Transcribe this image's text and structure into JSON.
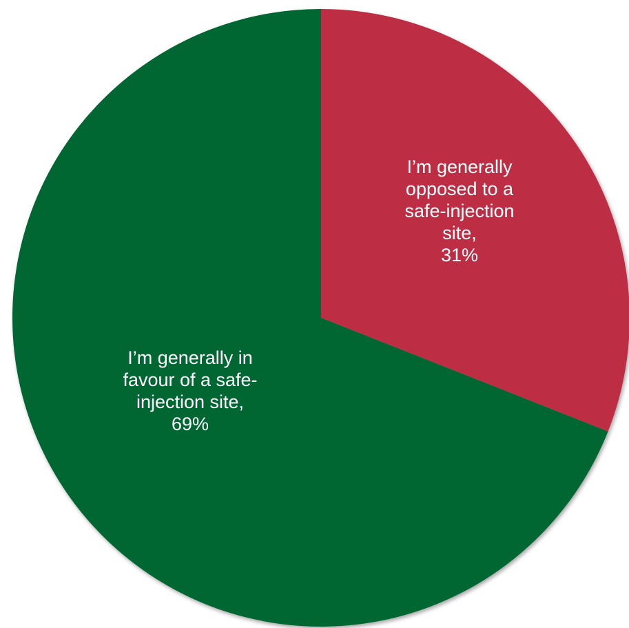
{
  "chart_data": {
    "type": "pie",
    "categories": [
      "I’m generally opposed to a safe-injection site,",
      "I’m generally in favour of a safe-injection site,"
    ],
    "values": [
      31,
      69
    ],
    "value_labels": [
      "31%",
      "69%"
    ],
    "colors": [
      "#bd2e45",
      "#006630"
    ],
    "label_lines": [
      [
        "I’m generally",
        "opposed to a",
        "safe-injection",
        "site,",
        "31%"
      ],
      [
        "I’m generally in",
        "favour of a safe-",
        "injection site,",
        "69%"
      ]
    ],
    "start_angle": "12 o'clock",
    "direction": "clockwise",
    "legend": "none"
  }
}
